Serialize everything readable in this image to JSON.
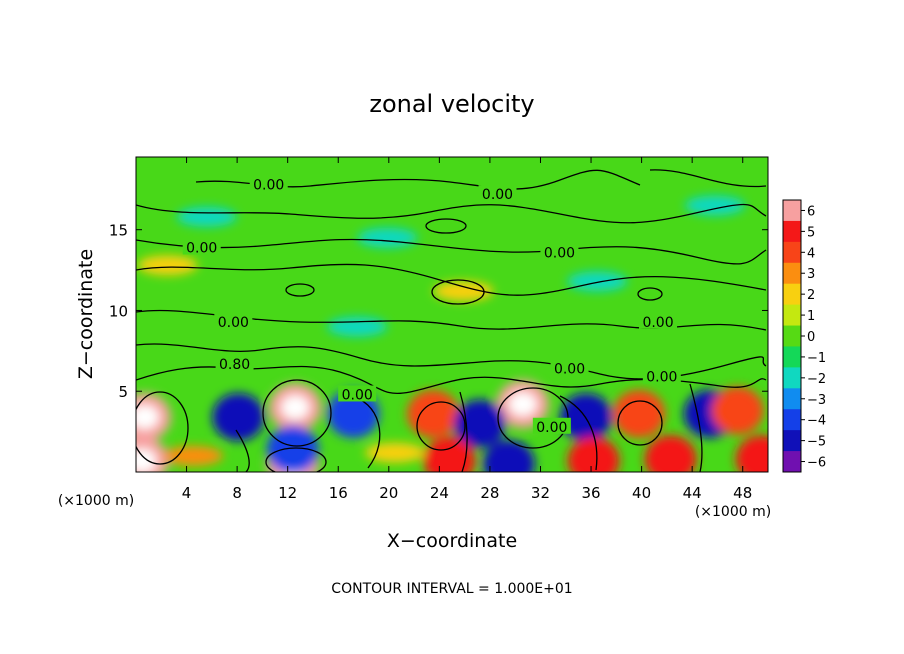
{
  "chart_data": {
    "type": "heatmap",
    "title": "zonal velocity",
    "xlabel": "X−coordinate",
    "ylabel": "Z−coordinate",
    "x_unit_left": "(×1000 m)",
    "x_unit_right": "(×1000 m)",
    "xlim": [
      0,
      50
    ],
    "ylim": [
      0,
      19.5
    ],
    "x_ticks": [
      4,
      8,
      12,
      16,
      20,
      24,
      28,
      32,
      36,
      40,
      44,
      48
    ],
    "y_ticks": [
      5,
      10,
      15
    ],
    "colorbar": {
      "ticks": [
        6,
        5,
        4,
        3,
        2,
        1,
        0,
        -1,
        -2,
        -3,
        -4,
        -5,
        -6
      ],
      "tick_labels": [
        "6",
        "5",
        "4",
        "3",
        "2",
        "1",
        "0",
        "−1",
        "−2",
        "−3",
        "−4",
        "−5",
        "−6"
      ],
      "colors": [
        "#f7a0a0",
        "#f41818",
        "#f84418",
        "#fb8e10",
        "#f8d010",
        "#c4e810",
        "#56da14",
        "#14d858",
        "#10d8c0",
        "#108cf0",
        "#1440e8",
        "#1010b8",
        "#7010b0"
      ]
    },
    "contour_labels": [
      {
        "x": 10.5,
        "y": 17.8,
        "text": "0.00"
      },
      {
        "x": 28.6,
        "y": 17.2,
        "text": "0.00"
      },
      {
        "x": 5.2,
        "y": 13.9,
        "text": "0.00"
      },
      {
        "x": 33.5,
        "y": 13.6,
        "text": "0.00"
      },
      {
        "x": 7.7,
        "y": 9.3,
        "text": "0.00"
      },
      {
        "x": 41.3,
        "y": 9.3,
        "text": "0.00"
      },
      {
        "x": 7.8,
        "y": 6.7,
        "text": "0.80"
      },
      {
        "x": 34.3,
        "y": 6.4,
        "text": "0.00"
      },
      {
        "x": 41.6,
        "y": 5.9,
        "text": "0.00"
      },
      {
        "x": 17.5,
        "y": 4.8,
        "text": "0.00"
      },
      {
        "x": 32.9,
        "y": 2.8,
        "text": "0.00"
      }
    ],
    "features": [
      {
        "x": 0.7,
        "y": 3.4,
        "value": 6
      },
      {
        "x": 12.6,
        "y": 4.0,
        "value": 6
      },
      {
        "x": 30.6,
        "y": 4.2,
        "value": 6
      },
      {
        "x": 23.5,
        "y": 3.6,
        "value": 4
      },
      {
        "x": 39.8,
        "y": 3.6,
        "value": 4
      },
      {
        "x": 8.1,
        "y": 3.4,
        "value": -5
      },
      {
        "x": 17.2,
        "y": 3.6,
        "value": -4
      },
      {
        "x": 27.2,
        "y": 3.0,
        "value": -5
      },
      {
        "x": 35.6,
        "y": 3.4,
        "value": -5
      },
      {
        "x": 45.4,
        "y": 3.6,
        "value": -5
      },
      {
        "x": 12.4,
        "y": 0.5,
        "value": 6
      },
      {
        "x": 12.4,
        "y": 1.4,
        "value": -4
      },
      {
        "x": 24.8,
        "y": 0.7,
        "value": 5
      },
      {
        "x": 0.5,
        "y": 0.7,
        "value": 6
      },
      {
        "x": 49.5,
        "y": 0.8,
        "value": 5
      },
      {
        "x": 36.2,
        "y": 0.7,
        "value": 5
      },
      {
        "x": 42.3,
        "y": 0.8,
        "value": 5
      },
      {
        "x": 29.5,
        "y": 0.5,
        "value": -5
      },
      {
        "x": 20.5,
        "y": 1.2,
        "value": 2
      },
      {
        "x": 4.5,
        "y": 1.0,
        "value": 3
      },
      {
        "x": 47.6,
        "y": 3.8,
        "value": 4
      },
      {
        "x": 25.9,
        "y": 11.2,
        "value": 2
      },
      {
        "x": 2.5,
        "y": 12.8,
        "value": 2
      },
      {
        "x": 5.6,
        "y": 15.8,
        "value": -2
      },
      {
        "x": 19.9,
        "y": 14.5,
        "value": -2
      },
      {
        "x": 36.5,
        "y": 11.8,
        "value": -2
      },
      {
        "x": 17.5,
        "y": 9.0,
        "value": -2
      },
      {
        "x": 45.8,
        "y": 16.5,
        "value": -2
      }
    ],
    "footer": "CONTOUR INTERVAL = 1.000E+01"
  }
}
